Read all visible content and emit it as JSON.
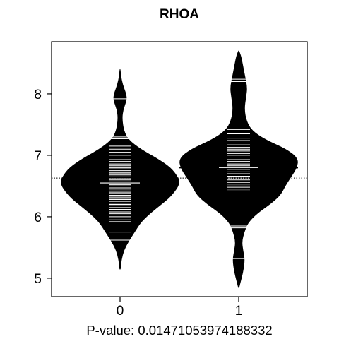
{
  "chart_data": {
    "type": "beanplot",
    "title": "RHOA",
    "xlabel": "P-value: 0.01471053974188332",
    "ylabel": "",
    "categories": [
      "0",
      "1"
    ],
    "ylim": [
      4.7,
      8.85
    ],
    "yticks": [
      5,
      6,
      7,
      8
    ],
    "overall_mean": 6.63,
    "grid": false,
    "colors": {
      "bean": "#000000",
      "beanline": "#ffffff",
      "axis": "#000000",
      "background": "#ffffff"
    },
    "groups": [
      {
        "name": "0",
        "mean": 6.55,
        "density": [
          [
            5.15,
            0.003
          ],
          [
            5.3,
            0.02
          ],
          [
            5.45,
            0.06
          ],
          [
            5.6,
            0.14
          ],
          [
            5.75,
            0.24
          ],
          [
            5.9,
            0.34
          ],
          [
            6.0,
            0.44
          ],
          [
            6.15,
            0.62
          ],
          [
            6.3,
            0.82
          ],
          [
            6.45,
            0.95
          ],
          [
            6.55,
            1.0
          ],
          [
            6.65,
            0.97
          ],
          [
            6.8,
            0.85
          ],
          [
            6.95,
            0.62
          ],
          [
            7.1,
            0.34
          ],
          [
            7.25,
            0.14
          ],
          [
            7.4,
            0.06
          ],
          [
            7.6,
            0.03
          ],
          [
            7.75,
            0.05
          ],
          [
            7.9,
            0.11
          ],
          [
            8.0,
            0.1
          ],
          [
            8.15,
            0.04
          ],
          [
            8.3,
            0.01
          ],
          [
            8.4,
            0.002
          ]
        ],
        "points": [
          5.62,
          5.75,
          5.92,
          5.95,
          6.0,
          6.05,
          6.08,
          6.12,
          6.15,
          6.18,
          6.2,
          6.22,
          6.25,
          6.28,
          6.3,
          6.32,
          6.35,
          6.38,
          6.4,
          6.42,
          6.45,
          6.47,
          6.5,
          6.52,
          6.55,
          6.57,
          6.6,
          6.62,
          6.65,
          6.68,
          6.7,
          6.72,
          6.75,
          6.78,
          6.8,
          6.83,
          6.86,
          6.9,
          6.93,
          6.97,
          7.0,
          7.05,
          7.1,
          7.15,
          7.2,
          7.27,
          7.3,
          7.92
        ]
      },
      {
        "name": "1",
        "mean": 6.8,
        "density": [
          [
            4.85,
            0.003
          ],
          [
            4.95,
            0.03
          ],
          [
            5.1,
            0.07
          ],
          [
            5.3,
            0.1
          ],
          [
            5.45,
            0.07
          ],
          [
            5.6,
            0.05
          ],
          [
            5.75,
            0.09
          ],
          [
            5.9,
            0.15
          ],
          [
            6.05,
            0.3
          ],
          [
            6.2,
            0.52
          ],
          [
            6.35,
            0.7
          ],
          [
            6.5,
            0.78
          ],
          [
            6.65,
            0.88
          ],
          [
            6.8,
            0.98
          ],
          [
            6.95,
            1.0
          ],
          [
            7.1,
            0.8
          ],
          [
            7.25,
            0.45
          ],
          [
            7.4,
            0.22
          ],
          [
            7.55,
            0.13
          ],
          [
            7.75,
            0.09
          ],
          [
            7.95,
            0.12
          ],
          [
            8.1,
            0.14
          ],
          [
            8.3,
            0.1
          ],
          [
            8.45,
            0.07
          ],
          [
            8.6,
            0.04
          ],
          [
            8.7,
            0.003
          ]
        ],
        "points": [
          5.32,
          5.82,
          5.85,
          6.42,
          6.45,
          6.48,
          6.5,
          6.53,
          6.56,
          6.6,
          6.63,
          6.66,
          6.7,
          6.73,
          6.77,
          6.8,
          6.83,
          6.86,
          6.9,
          6.93,
          6.97,
          7.0,
          7.03,
          7.07,
          7.1,
          7.13,
          7.17,
          7.2,
          7.24,
          7.28,
          7.35,
          7.42,
          8.2,
          8.24
        ]
      }
    ]
  }
}
